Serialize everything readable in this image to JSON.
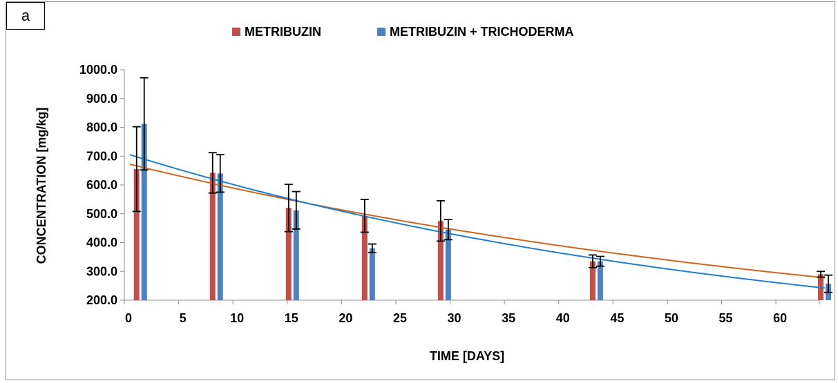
{
  "panel_label": "a",
  "colors": {
    "metribuzin": "#C0504D",
    "metribuzin_trichoderma": "#4F81BD",
    "trend_metribuzin": "#D0651C",
    "trend_metribuzin_trichoderma": "#1F7FCF",
    "axis": "#8c8c8c",
    "error_bar": "#000000"
  },
  "chart_data": {
    "type": "bar",
    "title": "",
    "xlabel": "TIME [DAYS]",
    "ylabel": "CONCENTRATION [mg/kg]",
    "xlim": [
      0,
      64
    ],
    "ylim": [
      200,
      1000
    ],
    "x_ticks": [
      0,
      5,
      10,
      15,
      20,
      25,
      30,
      35,
      40,
      45,
      50,
      55,
      60
    ],
    "y_ticks": [
      200.0,
      300.0,
      400.0,
      500.0,
      600.0,
      700.0,
      800.0,
      900.0,
      1000.0
    ],
    "y_tick_labels": [
      "200.0",
      "300.0",
      "400.0",
      "500.0",
      "600.0",
      "700.0",
      "800.0",
      "900.0",
      "1000.0"
    ],
    "x_tick_labels": [
      "0",
      "5",
      "10",
      "15",
      "20",
      "25",
      "30",
      "35",
      "40",
      "45",
      "50",
      "55",
      "60"
    ],
    "legend_position": "top",
    "series": [
      {
        "name": "METRIBUZIN",
        "x": [
          1,
          8,
          15,
          22,
          29,
          43,
          64
        ],
        "values": [
          655,
          642,
          520,
          493,
          475,
          335,
          290
        ],
        "error": [
          147,
          70,
          82,
          57,
          70,
          22,
          10
        ],
        "trend": {
          "type": "exponential",
          "a": 672,
          "k": 0.0138
        }
      },
      {
        "name": "METRIBUZIN + TRICHODERMA",
        "x": [
          1,
          8,
          15,
          22,
          29,
          43,
          64
        ],
        "values": [
          812,
          640,
          512,
          380,
          445,
          335,
          257
        ],
        "error": [
          160,
          65,
          65,
          15,
          35,
          17,
          30
        ],
        "trend": {
          "type": "exponential",
          "a": 705,
          "k": 0.0167
        }
      }
    ]
  }
}
